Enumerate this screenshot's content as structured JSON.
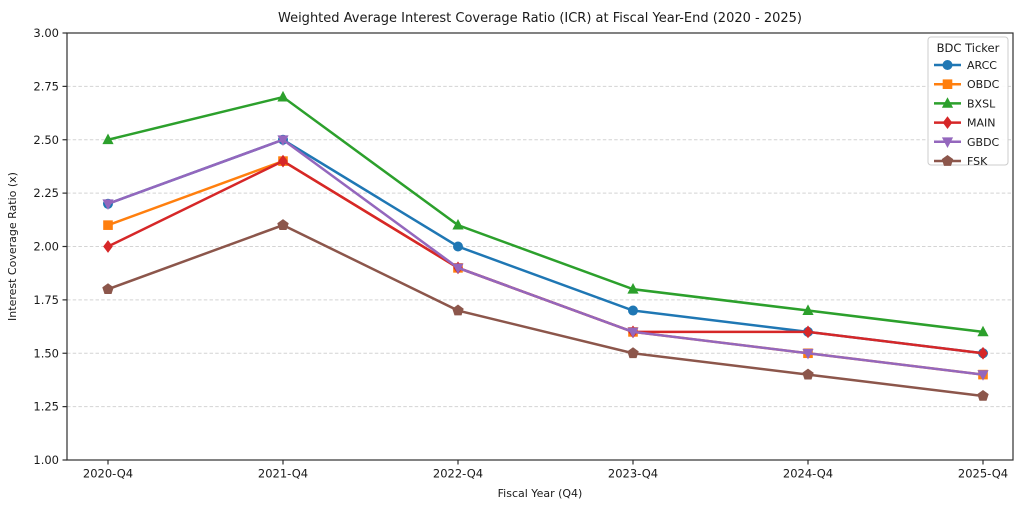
{
  "chart_data": {
    "type": "line",
    "title": "Weighted Average Interest Coverage Ratio (ICR) at Fiscal Year-End (2020 - 2025)",
    "xlabel": "Fiscal Year (Q4)",
    "ylabel": "Interest Coverage Ratio (x)",
    "categories": [
      "2020-Q4",
      "2021-Q4",
      "2022-Q4",
      "2023-Q4",
      "2024-Q4",
      "2025-Q4"
    ],
    "ylim": [
      1.0,
      3.0
    ],
    "ytick_step": 0.25,
    "ytick_labels": [
      "1.00",
      "1.25",
      "1.50",
      "1.75",
      "2.00",
      "2.25",
      "2.50",
      "2.75",
      "3.00"
    ],
    "grid": "horizontal-dashed",
    "legend": {
      "title": "BDC Ticker",
      "position": "upper-right"
    },
    "series": [
      {
        "name": "ARCC",
        "color": "#1f77b4",
        "marker": "circle",
        "values": [
          2.2,
          2.5,
          2.0,
          1.7,
          1.6,
          1.5
        ]
      },
      {
        "name": "OBDC",
        "color": "#ff7f0e",
        "marker": "square",
        "values": [
          2.1,
          2.4,
          1.9,
          1.6,
          1.5,
          1.4
        ]
      },
      {
        "name": "BXSL",
        "color": "#2ca02c",
        "marker": "triangle-up",
        "values": [
          2.5,
          2.7,
          2.1,
          1.8,
          1.7,
          1.6
        ]
      },
      {
        "name": "MAIN",
        "color": "#d62728",
        "marker": "diamond",
        "values": [
          2.0,
          2.4,
          1.9,
          1.6,
          1.6,
          1.5
        ]
      },
      {
        "name": "GBDC",
        "color": "#9467bd",
        "marker": "triangle-down",
        "values": [
          2.2,
          2.5,
          1.9,
          1.6,
          1.5,
          1.4
        ]
      },
      {
        "name": "FSK",
        "color": "#8c564b",
        "marker": "pentagon",
        "values": [
          1.8,
          2.1,
          1.7,
          1.5,
          1.4,
          1.3
        ]
      }
    ],
    "colors": {
      "axis": "#2e2e2e",
      "grid": "#d4d4d4",
      "text": "#1a1a1a",
      "legend_border": "#cccccc",
      "legend_bg": "#ffffff"
    }
  }
}
